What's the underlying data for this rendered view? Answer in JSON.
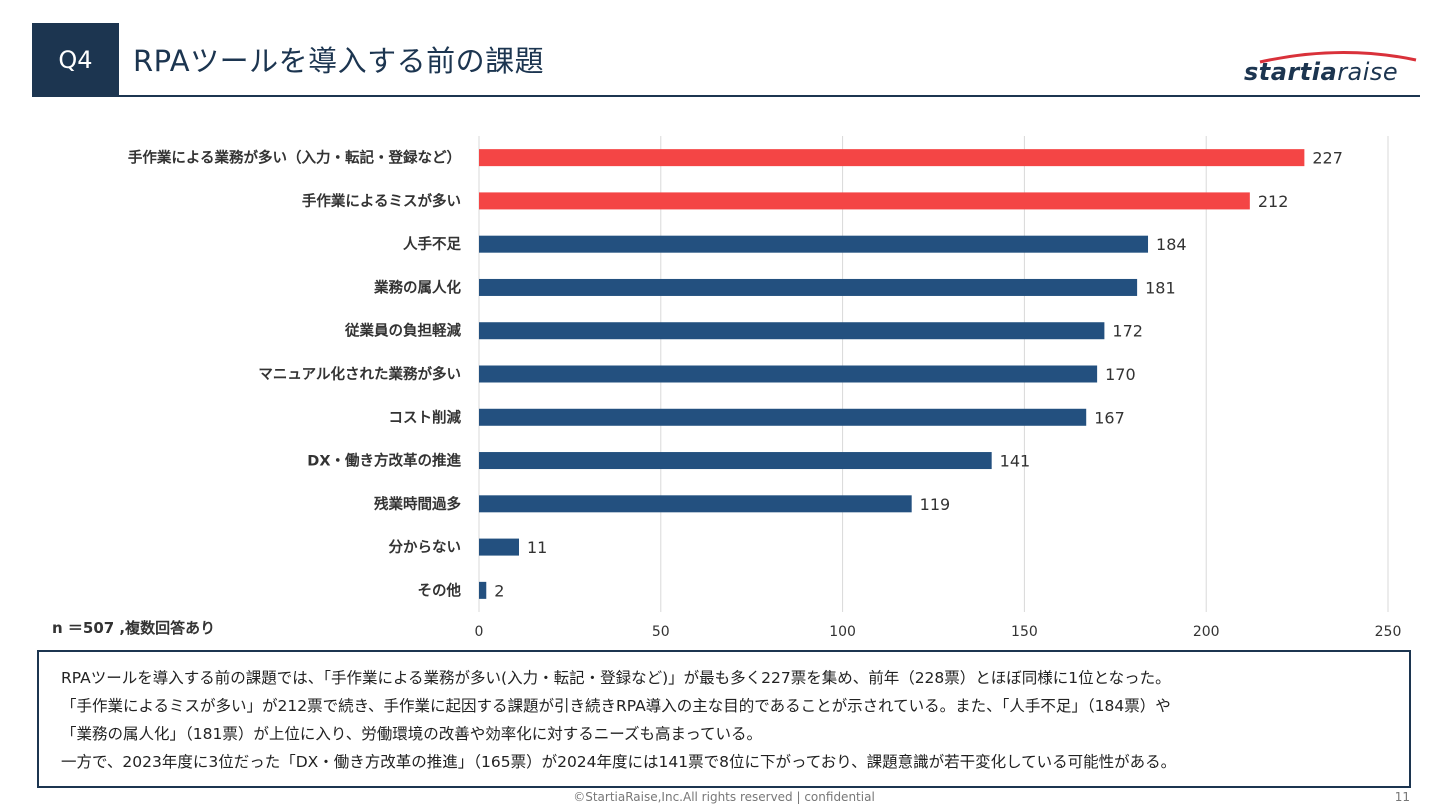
{
  "header": {
    "badge": "Q4",
    "title": "RPAツールを導入する前の課題",
    "logo_strong": "startia",
    "logo_light": "raise"
  },
  "note": "n ＝507 ,複数回答あり",
  "summary": [
    "RPAツールを導入する前の課題では、「手作業による業務が多い(入力・転記・登録など)」が最も多く227票を集め、前年（228票）とほぼ同様に1位となった。",
    "「手作業によるミスが多い」が212票で続き、手作業に起因する課題が引き続きRPA導入の主な目的であることが示されている。また、「人手不足」（184票）や",
    "「業務の属人化」（181票）が上位に入り、労働環境の改善や効率化に対するニーズも高まっている。",
    "一方で、2023年度に3位だった「DX・働き方改革の推進」（165票）が2024年度には141票で8位に下がっており、課題意識が若干変化している可能性がある。"
  ],
  "footer": "©StartiaRaise,Inc.All rights reserved | confidential",
  "page_number": "11",
  "colors": {
    "highlight": "#f44545",
    "primary": "#23507f",
    "dark": "#1c3550",
    "grid": "#d9d9d9"
  },
  "chart_data": {
    "type": "bar",
    "orientation": "horizontal",
    "categories": [
      "手作業による業務が多い（入力・転記・登録など）",
      "手作業によるミスが多い",
      "人手不足",
      "業務の属人化",
      "従業員の負担軽減",
      "マニュアル化された業務が多い",
      "コスト削減",
      "DX・働き方改革の推進",
      "残業時間過多",
      "分からない",
      "その他"
    ],
    "values": [
      227,
      212,
      184,
      181,
      172,
      170,
      167,
      141,
      119,
      11,
      2
    ],
    "highlighted": [
      true,
      true,
      false,
      false,
      false,
      false,
      false,
      false,
      false,
      false,
      false
    ],
    "xlim": [
      0,
      250
    ],
    "xticks": [
      0,
      50,
      100,
      150,
      200,
      250
    ],
    "grid": true,
    "legend": "none",
    "title": "",
    "xlabel": "",
    "ylabel": ""
  }
}
